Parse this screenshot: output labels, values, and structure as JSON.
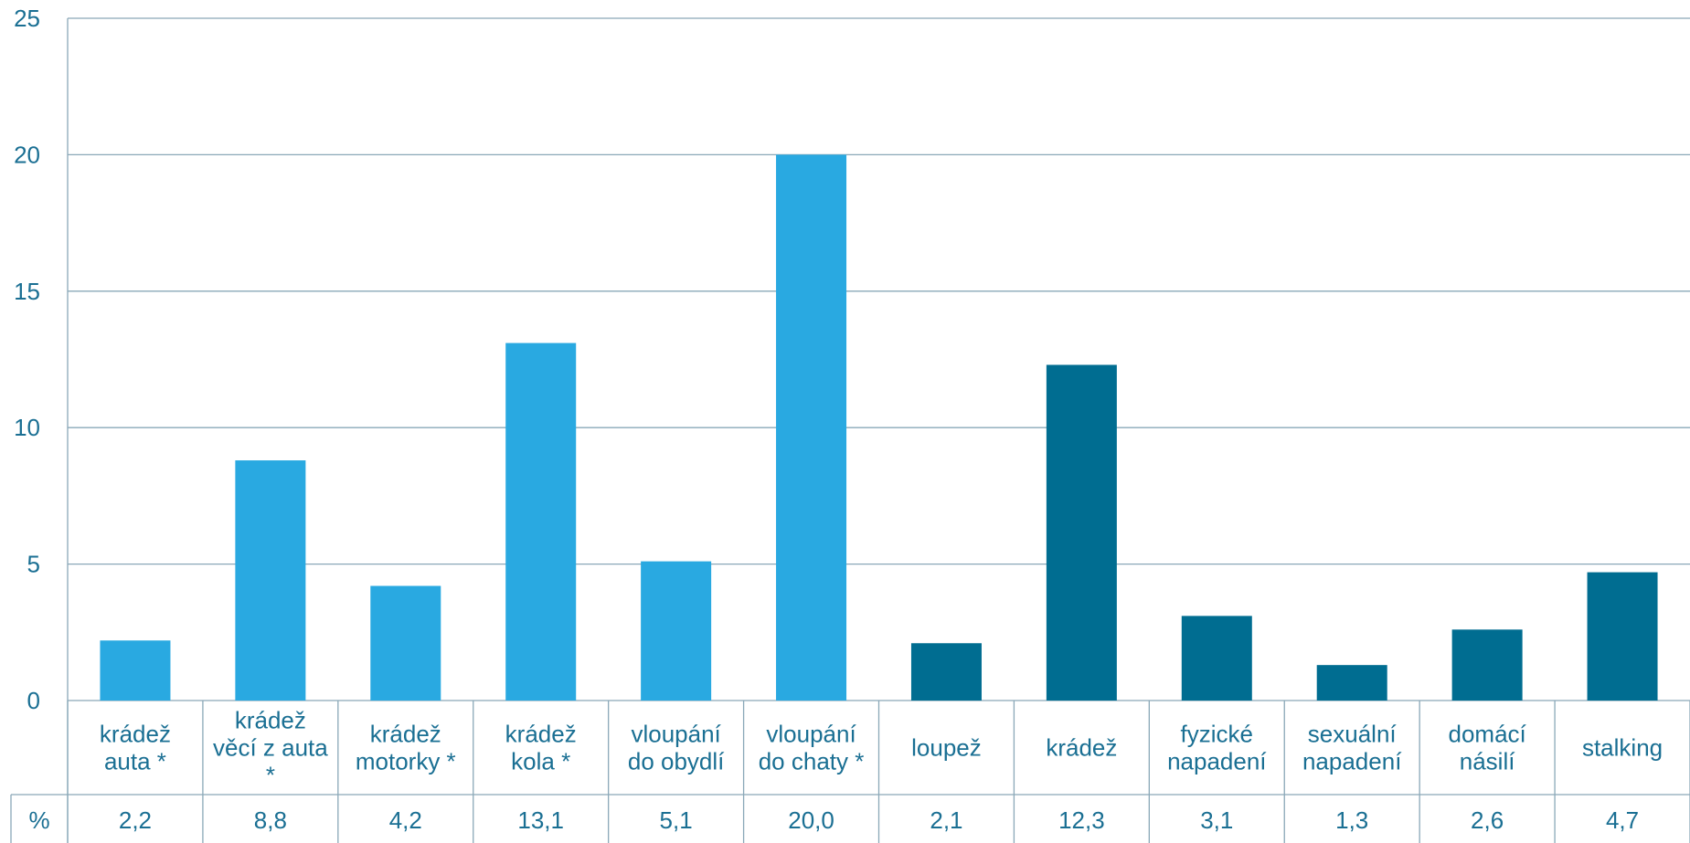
{
  "chart_data": {
    "type": "bar",
    "title": "",
    "xlabel": "",
    "ylabel": "",
    "ylim": [
      0,
      25
    ],
    "yticks": [
      "0",
      "5",
      "10",
      "15",
      "20",
      "25"
    ],
    "grid": true,
    "categories": [
      [
        "krádež",
        "auta *"
      ],
      [
        "krádež",
        "věcí z auta",
        "*"
      ],
      [
        "krádež",
        "motorky *"
      ],
      [
        "krádež",
        "kola *"
      ],
      [
        "vloupání",
        "do obydlí"
      ],
      [
        "vloupání",
        "do chaty *"
      ],
      [
        "loupež"
      ],
      [
        "krádež"
      ],
      [
        "fyzické",
        "napadení"
      ],
      [
        "sexuální",
        "napadení"
      ],
      [
        "domácí",
        "násilí"
      ],
      [
        "stalking"
      ]
    ],
    "values": [
      2.2,
      8.8,
      4.2,
      13.1,
      5.1,
      20.0,
      2.1,
      12.3,
      3.1,
      1.3,
      2.6,
      4.7
    ],
    "value_labels": [
      "2,2",
      "8,8",
      "4,2",
      "13,1",
      "5,1",
      "20,0",
      "2,1",
      "12,3",
      "3,1",
      "1,3",
      "2,6",
      "4,7"
    ],
    "table_row_label": "%",
    "colors": {
      "property": "#29a9e1",
      "personal": "#006d91",
      "grid": "#8aa8b8",
      "text": "#1a6f93"
    },
    "bar_groups": [
      "property",
      "property",
      "property",
      "property",
      "property",
      "property",
      "personal",
      "personal",
      "personal",
      "personal",
      "personal",
      "personal"
    ]
  }
}
